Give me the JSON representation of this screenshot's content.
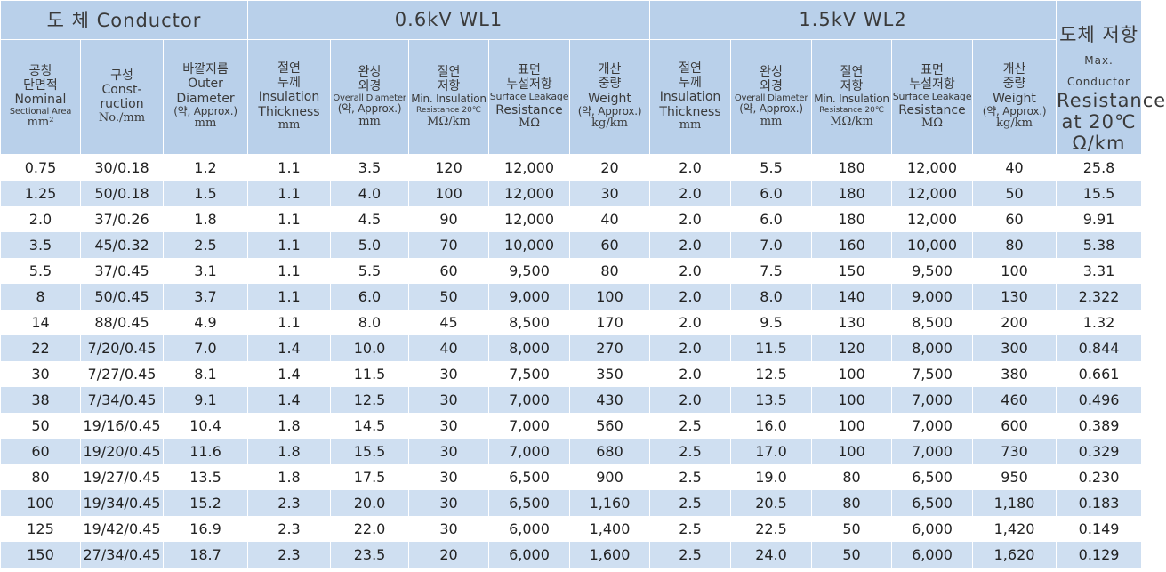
{
  "groups": {
    "conductor": "도 체  Conductor",
    "wl1": "0.6kV WL1",
    "wl2": "1.5kV WL2",
    "resistance": "도체"
  },
  "headers": {
    "area": {
      "k1": "공칭",
      "k2": "단면적",
      "e1": "Nominal",
      "s1": "Sectional Area",
      "u": "mm²"
    },
    "construction": {
      "k1": "구성",
      "e1": "Const-",
      "e2": "ruction",
      "u": "No./mm"
    },
    "outer": {
      "k1": "바깥지름",
      "e1": "Outer",
      "e2": "Diameter",
      "e3": "(약, Approx.)",
      "u": "mm"
    },
    "wl1_ins": {
      "k1": "절연",
      "k2": "두께",
      "e1": "Insulation",
      "e2": "Thickness",
      "u": "mm"
    },
    "wl1_od": {
      "k1": "완성",
      "k2": "외경",
      "s1": "Overall Diameter",
      "e1": "(약, Approx.)",
      "u": "mm"
    },
    "wl1_minres": {
      "k1": "절연",
      "k2": "저항",
      "e1": "Min. Insulation",
      "s1": "Resistance 20℃",
      "u": "MΩ/km"
    },
    "wl1_surf": {
      "k1": "표면",
      "k2": "누설저항",
      "s1": "Surface Leakage",
      "e1": "Resistance",
      "u": "MΩ"
    },
    "wl1_wt": {
      "k1": "개산",
      "k2": "중량",
      "e1": "Weight",
      "e2": "(약, Approx.)",
      "u": "kg/km"
    },
    "wl2_ins": {
      "k1": "절연",
      "k2": "두께",
      "e1": "Insulation",
      "e2": "Thickness",
      "u": "mm"
    },
    "wl2_od": {
      "k1": "완성",
      "k2": "외경",
      "s1": "Overall Diameter",
      "e1": "(약, Approx.)",
      "u": "mm"
    },
    "wl2_minres": {
      "k1": "절연",
      "k2": "저항",
      "e1": "Min. Insulation",
      "s1": "Resistance 20℃",
      "u": "MΩ/km"
    },
    "wl2_surf": {
      "k1": "표면",
      "k2": "누설저항",
      "s1": "Surface Leakage",
      "e1": "Resistance",
      "u": "MΩ"
    },
    "wl2_wt": {
      "k1": "개산",
      "k2": "중량",
      "e1": "Weight",
      "e2": "(약, Approx.)",
      "u": "kg/km"
    },
    "cond_res": {
      "k1": "저항",
      "e1": "Max. Conductor",
      "s1": "Resistance at 20℃",
      "u": "Ω/km"
    }
  },
  "rows": [
    [
      "0.75",
      "30/0.18",
      "1.2",
      "1.1",
      "3.5",
      "120",
      "12,000",
      "20",
      "2.0",
      "5.5",
      "180",
      "12,000",
      "40",
      "25.8"
    ],
    [
      "1.25",
      "50/0.18",
      "1.5",
      "1.1",
      "4.0",
      "100",
      "12,000",
      "30",
      "2.0",
      "6.0",
      "180",
      "12,000",
      "50",
      "15.5"
    ],
    [
      "2.0",
      "37/0.26",
      "1.8",
      "1.1",
      "4.5",
      "90",
      "12,000",
      "40",
      "2.0",
      "6.0",
      "180",
      "12,000",
      "60",
      "9.91"
    ],
    [
      "3.5",
      "45/0.32",
      "2.5",
      "1.1",
      "5.0",
      "70",
      "10,000",
      "60",
      "2.0",
      "7.0",
      "160",
      "10,000",
      "80",
      "5.38"
    ],
    [
      "5.5",
      "37/0.45",
      "3.1",
      "1.1",
      "5.5",
      "60",
      "9,500",
      "80",
      "2.0",
      "7.5",
      "150",
      "9,500",
      "100",
      "3.31"
    ],
    [
      "8",
      "50/0.45",
      "3.7",
      "1.1",
      "6.0",
      "50",
      "9,000",
      "100",
      "2.0",
      "8.0",
      "140",
      "9,000",
      "130",
      "2.322"
    ],
    [
      "14",
      "88/0.45",
      "4.9",
      "1.1",
      "8.0",
      "45",
      "8,500",
      "170",
      "2.0",
      "9.5",
      "130",
      "8,500",
      "200",
      "1.32"
    ],
    [
      "22",
      "7/20/0.45",
      "7.0",
      "1.4",
      "10.0",
      "40",
      "8,000",
      "270",
      "2.0",
      "11.5",
      "120",
      "8,000",
      "300",
      "0.844"
    ],
    [
      "30",
      "7/27/0.45",
      "8.1",
      "1.4",
      "11.5",
      "30",
      "7,500",
      "350",
      "2.0",
      "12.5",
      "100",
      "7,500",
      "380",
      "0.661"
    ],
    [
      "38",
      "7/34/0.45",
      "9.1",
      "1.4",
      "12.5",
      "30",
      "7,000",
      "430",
      "2.0",
      "13.5",
      "100",
      "7,000",
      "460",
      "0.496"
    ],
    [
      "50",
      "19/16/0.45",
      "10.4",
      "1.8",
      "14.5",
      "30",
      "7,000",
      "560",
      "2.5",
      "16.0",
      "100",
      "7,000",
      "600",
      "0.389"
    ],
    [
      "60",
      "19/20/0.45",
      "11.6",
      "1.8",
      "15.5",
      "30",
      "7,000",
      "680",
      "2.5",
      "17.0",
      "100",
      "7,000",
      "730",
      "0.329"
    ],
    [
      "80",
      "19/27/0.45",
      "13.5",
      "1.8",
      "17.5",
      "30",
      "6,500",
      "900",
      "2.5",
      "19.0",
      "80",
      "6,500",
      "950",
      "0.230"
    ],
    [
      "100",
      "19/34/0.45",
      "15.2",
      "2.3",
      "20.0",
      "30",
      "6,500",
      "1,160",
      "2.5",
      "20.5",
      "80",
      "6,500",
      "1,180",
      "0.183"
    ],
    [
      "125",
      "19/42/0.45",
      "16.9",
      "2.3",
      "22.0",
      "30",
      "6,000",
      "1,400",
      "2.5",
      "22.5",
      "50",
      "6,000",
      "1,420",
      "0.149"
    ],
    [
      "150",
      "27/34/0.45",
      "18.7",
      "2.3",
      "23.5",
      "20",
      "6,000",
      "1,600",
      "2.5",
      "24.0",
      "50",
      "6,000",
      "1,620",
      "0.129"
    ]
  ]
}
